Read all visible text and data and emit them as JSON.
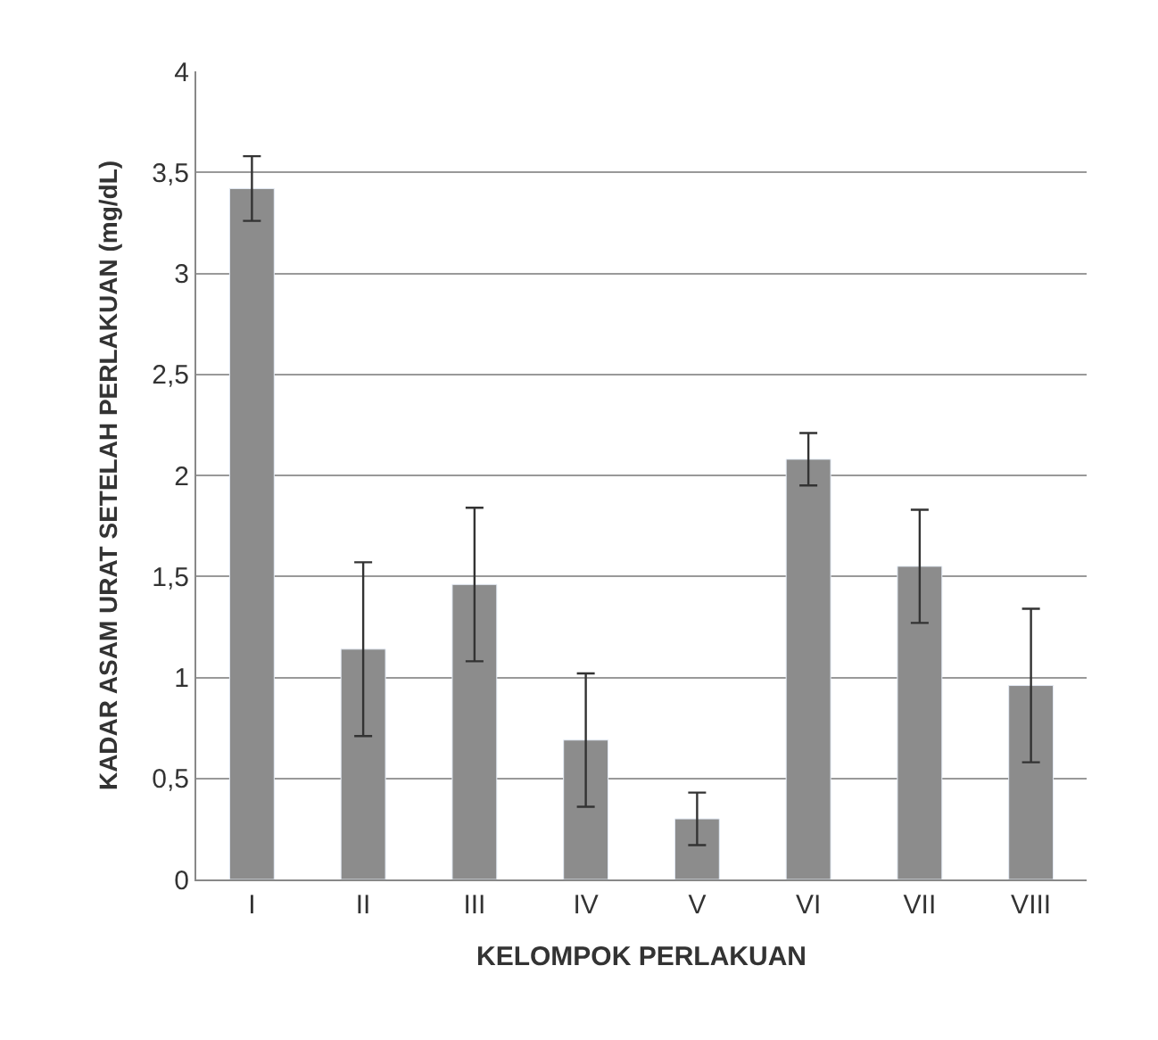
{
  "chart_data": {
    "type": "bar",
    "xlabel": "KELOMPOK PERLAKUAN",
    "ylabel": "KADAR ASAM URAT SETELAH PERLAKUAN (mg/dL)",
    "categories": [
      "I",
      "II",
      "III",
      "IV",
      "V",
      "VI",
      "VII",
      "VIII"
    ],
    "values": [
      3.42,
      1.14,
      1.46,
      0.69,
      0.3,
      2.08,
      1.55,
      0.96
    ],
    "errors": [
      0.16,
      0.43,
      0.38,
      0.33,
      0.13,
      0.13,
      0.28,
      0.38
    ],
    "color": "#8c8c8c",
    "ylim": [
      0,
      4
    ],
    "yticks": [
      0,
      {
        "value": 0.5,
        "label": "0,5"
      },
      1,
      {
        "value": 1.5,
        "label": "1,5"
      },
      2,
      {
        "value": 2.5,
        "label": "2,5"
      },
      3,
      {
        "value": 3.5,
        "label": "3,5"
      },
      4
    ],
    "grid": "y",
    "legend": false
  }
}
